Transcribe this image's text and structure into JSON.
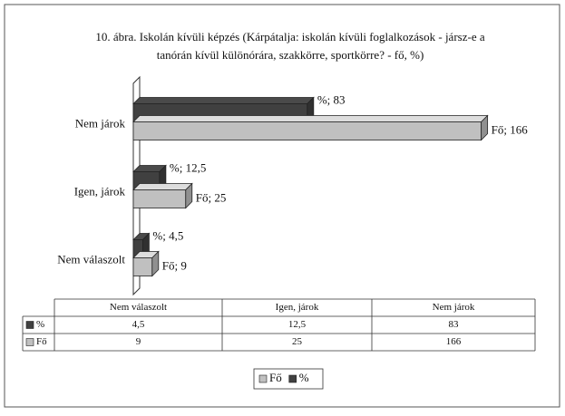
{
  "chart_data": {
    "type": "bar",
    "orientation": "horizontal",
    "title": "10. ábra. Iskolán kívüli képzés (Kárpátalja: iskolán kívüli foglalkozások - jársz-e a",
    "subtitle": "tanórán kívül különórára, szakkörre, sportkörre? - fő, %)",
    "categories": [
      "Nem válaszolt",
      "Igen, járok",
      "Nem járok"
    ],
    "xlim": [
      0,
      180
    ],
    "series": [
      {
        "name": "%",
        "color": "#404040",
        "values": [
          4.5,
          12.5,
          83
        ],
        "value_labels": [
          "%; 4,5",
          "%; 12,5",
          "%; 83"
        ],
        "table_labels": [
          "4,5",
          "12,5",
          "83"
        ]
      },
      {
        "name": "Fő",
        "color": "#c0c0c0",
        "values": [
          9,
          25,
          166
        ],
        "value_labels": [
          "Fő; 9",
          "Fő; 25",
          "Fő; 166"
        ],
        "table_labels": [
          "9",
          "25",
          "166"
        ]
      }
    ],
    "legend": "bottom"
  }
}
